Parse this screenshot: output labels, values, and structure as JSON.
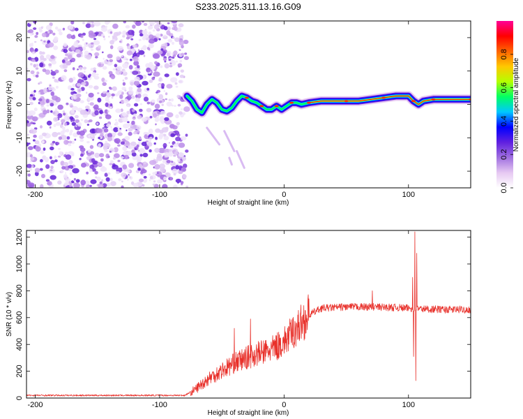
{
  "title": "S233.2025.311.13.16.G09",
  "charts": [
    {
      "type": "heatmap",
      "xlabel": "Height of straight line (km)",
      "ylabel": "Frequency (Hz)",
      "xlim": [
        -207,
        150
      ],
      "ylim": [
        -25,
        25
      ],
      "xticks": [
        -200,
        -100,
        0,
        100
      ],
      "yticks": [
        -20,
        -10,
        0,
        10,
        20
      ],
      "colorbar": {
        "label": "Normalized spectral amplitude",
        "range": [
          0.0,
          1.0
        ],
        "ticks": [
          "0.0",
          "0.2",
          "0.4",
          "0.6",
          "0.8"
        ],
        "tick_values": [
          0.0,
          0.2,
          0.4,
          0.6,
          0.8
        ],
        "colors": [
          "#ffffff",
          "#e6c8f2",
          "#a070e0",
          "#6020e0",
          "#0000ff",
          "#00c8ff",
          "#00ff64",
          "#b4ff00",
          "#ffc800",
          "#ff6400",
          "#ff0000",
          "#ff0096"
        ]
      },
      "noise_region": {
        "x_from": -207,
        "x_to": -78,
        "y_from": -25,
        "y_to": 25
      },
      "ridge": [
        [
          -78,
          2.5
        ],
        [
          -74,
          1.0
        ],
        [
          -70,
          -1.5
        ],
        [
          -66,
          -2.5
        ],
        [
          -62,
          0.0
        ],
        [
          -58,
          1.5
        ],
        [
          -54,
          0.5
        ],
        [
          -50,
          -1.5
        ],
        [
          -46,
          -2.0
        ],
        [
          -42,
          -1.0
        ],
        [
          -38,
          1.0
        ],
        [
          -34,
          2.5
        ],
        [
          -30,
          2.0
        ],
        [
          -26,
          1.0
        ],
        [
          -22,
          0.5
        ],
        [
          -18,
          -0.5
        ],
        [
          -14,
          -1.5
        ],
        [
          -10,
          -1.5
        ],
        [
          -6,
          -0.5
        ],
        [
          -2,
          -1.5
        ],
        [
          2,
          -0.5
        ],
        [
          6,
          0.5
        ],
        [
          10,
          0.5
        ],
        [
          14,
          0.0
        ],
        [
          20,
          0.5
        ],
        [
          30,
          1.0
        ],
        [
          40,
          1.0
        ],
        [
          50,
          1.0
        ],
        [
          60,
          1.0
        ],
        [
          70,
          1.5
        ],
        [
          80,
          2.0
        ],
        [
          90,
          2.5
        ],
        [
          100,
          2.5
        ],
        [
          104,
          1.0
        ],
        [
          108,
          0.0
        ],
        [
          112,
          1.0
        ],
        [
          120,
          1.5
        ],
        [
          130,
          1.5
        ],
        [
          140,
          1.5
        ],
        [
          150,
          1.5
        ]
      ],
      "faint_streaks": [
        {
          "x": [
            -62,
            -52
          ],
          "y": [
            -7,
            -12
          ]
        },
        {
          "x": [
            -48,
            -40
          ],
          "y": [
            -8,
            -14
          ]
        },
        {
          "x": [
            -38,
            -32
          ],
          "y": [
            -14,
            -19
          ]
        },
        {
          "x": [
            -44,
            -42
          ],
          "y": [
            -16,
            -18
          ]
        }
      ]
    },
    {
      "type": "line",
      "xlabel": "Height of straight line (km)",
      "ylabel": "SNR (10 * v/v)",
      "xlim": [
        -207,
        150
      ],
      "ylim": [
        0,
        1250
      ],
      "xticks": [
        -200,
        -100,
        0,
        100
      ],
      "yticks": [
        0,
        200,
        400,
        600,
        800,
        1000,
        1200
      ],
      "color": "#e8302a",
      "series_key_points": [
        [
          -207,
          20
        ],
        [
          -80,
          20
        ],
        [
          -72,
          60
        ],
        [
          -60,
          150
        ],
        [
          -40,
          260
        ],
        [
          -25,
          320
        ],
        [
          -10,
          360
        ],
        [
          0,
          420
        ],
        [
          10,
          520
        ],
        [
          20,
          620
        ],
        [
          30,
          670
        ],
        [
          50,
          680
        ],
        [
          70,
          680
        ],
        [
          90,
          675
        ],
        [
          100,
          670
        ],
        [
          110,
          665
        ],
        [
          130,
          660
        ],
        [
          150,
          660
        ]
      ],
      "spikes": [
        {
          "x": 105.0,
          "y": 1240
        },
        {
          "x": 105.8,
          "y": 130
        },
        {
          "x": 106.6,
          "y": 1080
        },
        {
          "x": 104.2,
          "y": 310
        },
        {
          "x": 103.4,
          "y": 900
        },
        {
          "x": 71.0,
          "y": 800
        },
        {
          "x": -27.0,
          "y": 590
        },
        {
          "x": -40.0,
          "y": 520
        }
      ]
    }
  ]
}
